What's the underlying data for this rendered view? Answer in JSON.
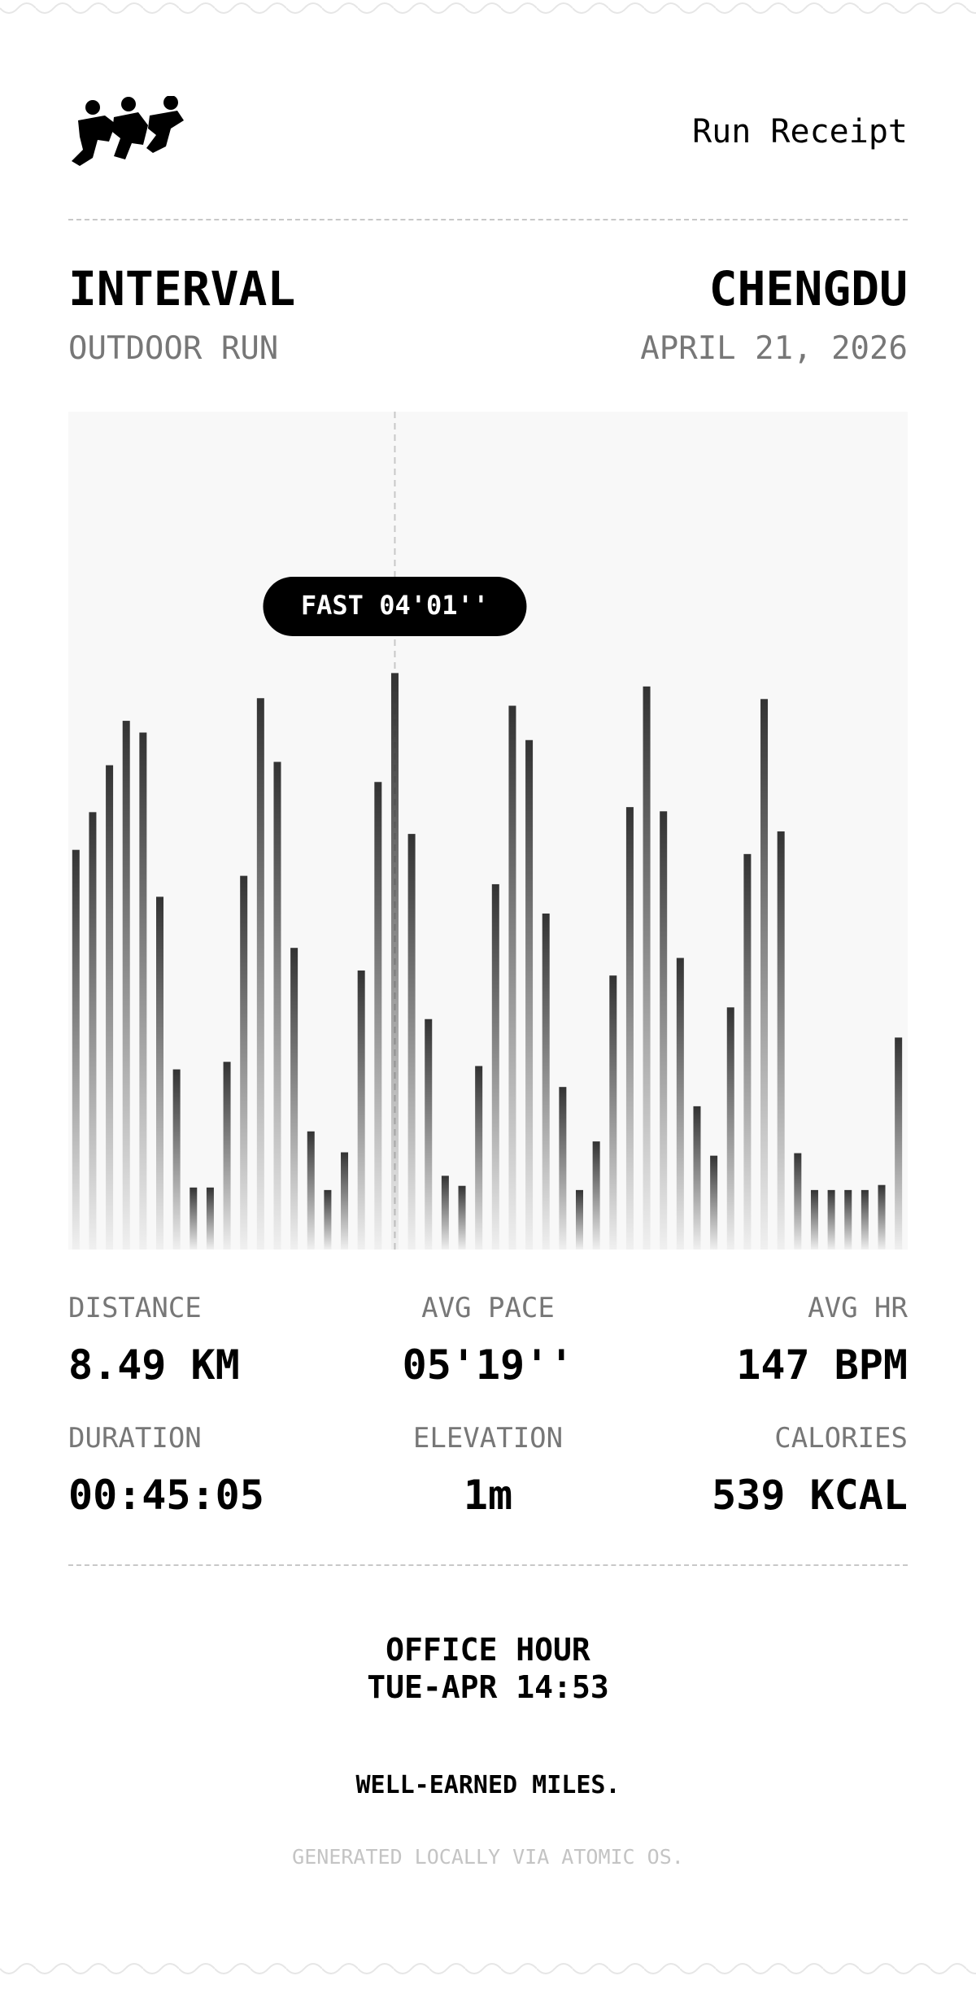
{
  "header": {
    "title": "Run Receipt"
  },
  "workout": {
    "type": "INTERVAL",
    "subtitle": "OUTDOOR RUN",
    "city": "CHENGDU",
    "date": "APRIL 21, 2026"
  },
  "chart_data": {
    "type": "bar",
    "color": "#333333",
    "ylim": [
      0,
      100
    ],
    "highlight_index": 19,
    "annotation": "FAST 04'01''",
    "values": [
      47.7,
      52.2,
      57.8,
      63.1,
      61.7,
      42.1,
      21.5,
      7.4,
      7.4,
      22.4,
      44.6,
      65.8,
      58.2,
      36.0,
      14.1,
      7.1,
      11.6,
      33.3,
      55.8,
      68.8,
      49.6,
      27.5,
      8.8,
      7.6,
      21.9,
      43.6,
      64.9,
      60.8,
      40.1,
      19.4,
      7.1,
      12.9,
      32.7,
      52.8,
      67.2,
      52.3,
      34.8,
      17.1,
      11.2,
      28.9,
      47.2,
      65.7,
      49.9,
      11.5,
      7.1,
      7.1,
      7.1,
      7.1,
      7.7,
      25.3
    ]
  },
  "stats": [
    {
      "label": "DISTANCE",
      "value": "8.49 KM"
    },
    {
      "label": "AVG PACE",
      "value": "05'19''"
    },
    {
      "label": "AVG HR",
      "value": "147 BPM"
    },
    {
      "label": "DURATION",
      "value": "00:45:05"
    },
    {
      "label": "ELEVATION",
      "value": "1m"
    },
    {
      "label": "CALORIES",
      "value": "539 KCAL"
    }
  ],
  "footer": {
    "lines": [
      "OFFICE HOUR",
      "TUE-APR 14:53"
    ],
    "slogan": "WELL-EARNED MILES.",
    "note": "GENERATED LOCALLY VIA ATOMIC OS."
  }
}
